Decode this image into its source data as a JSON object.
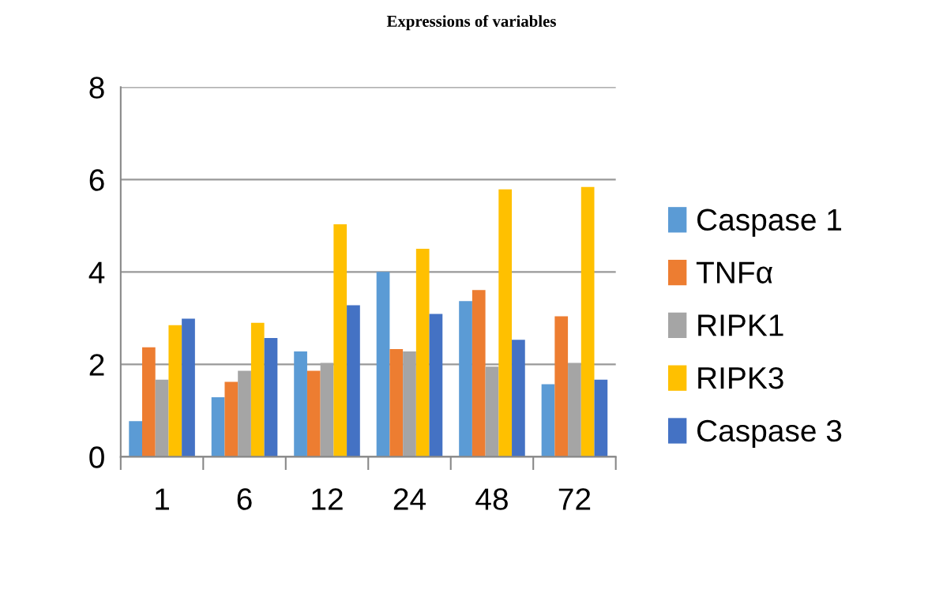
{
  "chart_data": {
    "type": "bar",
    "title": "Expressions of variables",
    "categories": [
      "1",
      "6",
      "12",
      "24",
      "48",
      "72"
    ],
    "series": [
      {
        "name": "Caspase 1",
        "color": "#5b9bd5",
        "values": [
          0.77,
          1.29,
          2.28,
          4.0,
          3.37,
          1.57
        ]
      },
      {
        "name": "TNFα",
        "color": "#ed7d31",
        "values": [
          2.37,
          1.62,
          1.86,
          2.33,
          3.61,
          3.04
        ]
      },
      {
        "name": "RIPK1",
        "color": "#a5a5a5",
        "values": [
          1.67,
          1.86,
          2.03,
          2.28,
          1.95,
          2.03
        ]
      },
      {
        "name": "RIPK3",
        "color": "#ffc000",
        "values": [
          2.85,
          2.9,
          5.03,
          4.5,
          5.79,
          5.84
        ]
      },
      {
        "name": "Caspase 3",
        "color": "#4472c4",
        "values": [
          2.99,
          2.57,
          3.28,
          3.09,
          2.53,
          1.67
        ]
      }
    ],
    "ylim": [
      0,
      8
    ],
    "yticks": [
      0,
      2,
      4,
      6,
      8
    ],
    "grid": "y",
    "legend": "right"
  }
}
